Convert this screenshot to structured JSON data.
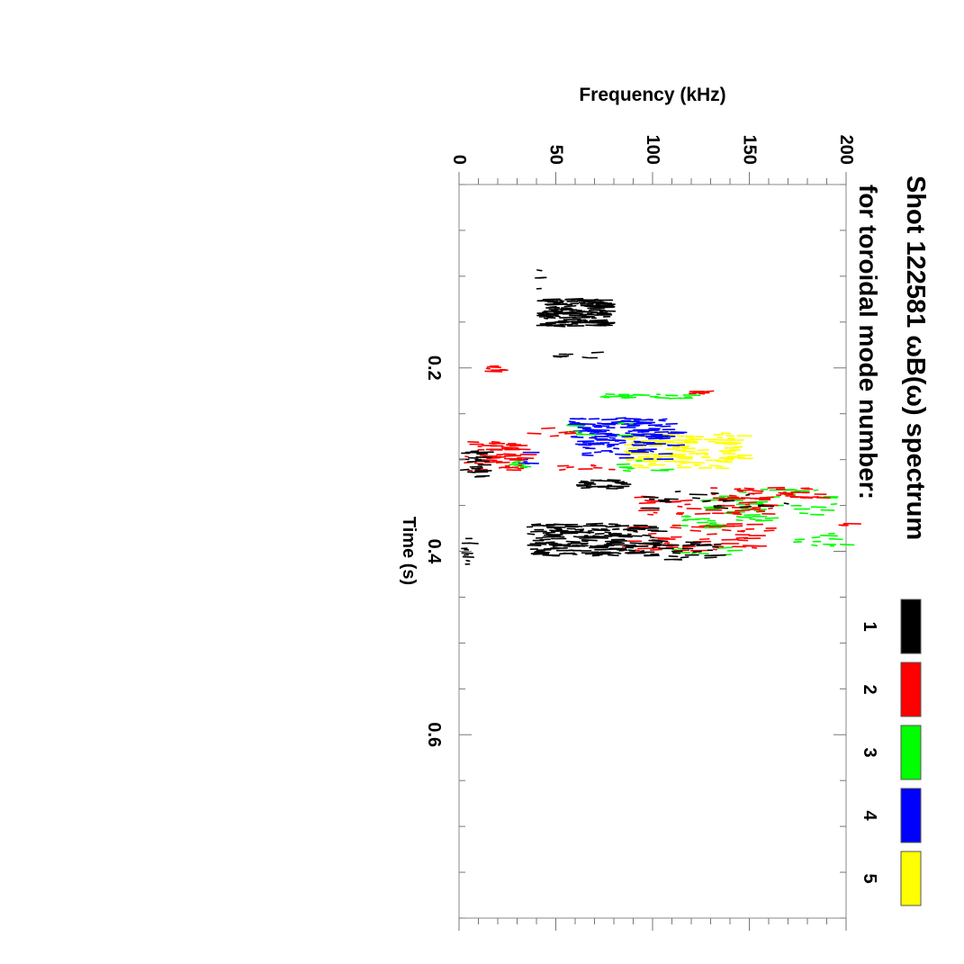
{
  "chart_data": {
    "type": "scatter",
    "orientation": "rotated 90 degrees clockwise (time axis runs top-to-bottom, frequency increases to the right)",
    "title_line1": "Shot 122581 ωB(ω) spectrum",
    "title_line2": "for toroidal mode number:",
    "xlabel": "Time (s)",
    "ylabel": "Frequency (kHz)",
    "xlim": [
      0.0,
      0.8
    ],
    "ylim": [
      0,
      200
    ],
    "x_ticks": [
      "0.2",
      "0.4",
      "0.6"
    ],
    "y_ticks": [
      "0",
      "50",
      "100",
      "150",
      "200"
    ],
    "grid": false,
    "legend_position": "right",
    "series": [
      {
        "name": "1",
        "color": "#000000",
        "clusters": [
          {
            "t": [
              0.125,
              0.155
            ],
            "f": [
              40,
              75
            ],
            "n": 150
          },
          {
            "t": [
              0.09,
              0.115
            ],
            "f": [
              38,
              42
            ],
            "n": 4
          },
          {
            "t": [
              0.183,
              0.193
            ],
            "f": [
              48,
              70
            ],
            "n": 8
          },
          {
            "t": [
              0.29,
              0.32
            ],
            "f": [
              0,
              10
            ],
            "n": 22
          },
          {
            "t": [
              0.322,
              0.332
            ],
            "f": [
              60,
              85
            ],
            "n": 25
          },
          {
            "t": [
              0.335,
              0.353
            ],
            "f": [
              90,
              170
            ],
            "n": 20
          },
          {
            "t": [
              0.37,
              0.405
            ],
            "f": [
              35,
              100
            ],
            "n": 200
          },
          {
            "t": [
              0.39,
              0.41
            ],
            "f": [
              100,
              135
            ],
            "n": 25
          },
          {
            "t": [
              0.385,
              0.415
            ],
            "f": [
              0,
              6
            ],
            "n": 10
          }
        ]
      },
      {
        "name": "2",
        "color": "#ff0000",
        "clusters": [
          {
            "t": [
              0.198,
              0.204
            ],
            "f": [
              10,
              22
            ],
            "n": 6
          },
          {
            "t": [
              0.225,
              0.228
            ],
            "f": [
              118,
              128
            ],
            "n": 6
          },
          {
            "t": [
              0.265,
              0.275
            ],
            "f": [
              35,
              60
            ],
            "n": 6
          },
          {
            "t": [
              0.28,
              0.312
            ],
            "f": [
              2,
              32
            ],
            "n": 60
          },
          {
            "t": [
              0.305,
              0.312
            ],
            "f": [
              48,
              82
            ],
            "n": 8
          },
          {
            "t": [
              0.33,
              0.345
            ],
            "f": [
              130,
              185
            ],
            "n": 35
          },
          {
            "t": [
              0.34,
              0.36
            ],
            "f": [
              90,
              160
            ],
            "n": 45
          },
          {
            "t": [
              0.37,
              0.4
            ],
            "f": [
              80,
              160
            ],
            "n": 55
          },
          {
            "t": [
              0.367,
              0.372
            ],
            "f": [
              195,
              200
            ],
            "n": 3
          }
        ]
      },
      {
        "name": "3",
        "color": "#00ff00",
        "clusters": [
          {
            "t": [
              0.228,
              0.234
            ],
            "f": [
              70,
              118
            ],
            "n": 20
          },
          {
            "t": [
              0.26,
              0.275
            ],
            "f": [
              55,
              90
            ],
            "n": 10
          },
          {
            "t": [
              0.298,
              0.31
            ],
            "f": [
              25,
              32
            ],
            "n": 8
          },
          {
            "t": [
              0.3,
              0.312
            ],
            "f": [
              70,
              110
            ],
            "n": 8
          },
          {
            "t": [
              0.33,
              0.36
            ],
            "f": [
              125,
              195
            ],
            "n": 40
          },
          {
            "t": [
              0.36,
              0.375
            ],
            "f": [
              110,
              160
            ],
            "n": 25
          },
          {
            "t": [
              0.38,
              0.395
            ],
            "f": [
              170,
              198
            ],
            "n": 12
          },
          {
            "t": [
              0.395,
              0.405
            ],
            "f": [
              110,
              140
            ],
            "n": 8
          }
        ]
      },
      {
        "name": "4",
        "color": "#0000ff",
        "clusters": [
          {
            "t": [
              0.255,
              0.285
            ],
            "f": [
              55,
              110
            ],
            "n": 120
          },
          {
            "t": [
              0.285,
              0.3
            ],
            "f": [
              60,
              105
            ],
            "n": 20
          },
          {
            "t": [
              0.29,
              0.305
            ],
            "f": [
              30,
              40
            ],
            "n": 6
          }
        ]
      },
      {
        "name": "5",
        "color": "#ffff00",
        "clusters": [
          {
            "t": [
              0.27,
              0.31
            ],
            "f": [
              85,
              145
            ],
            "n": 140
          }
        ]
      }
    ]
  }
}
